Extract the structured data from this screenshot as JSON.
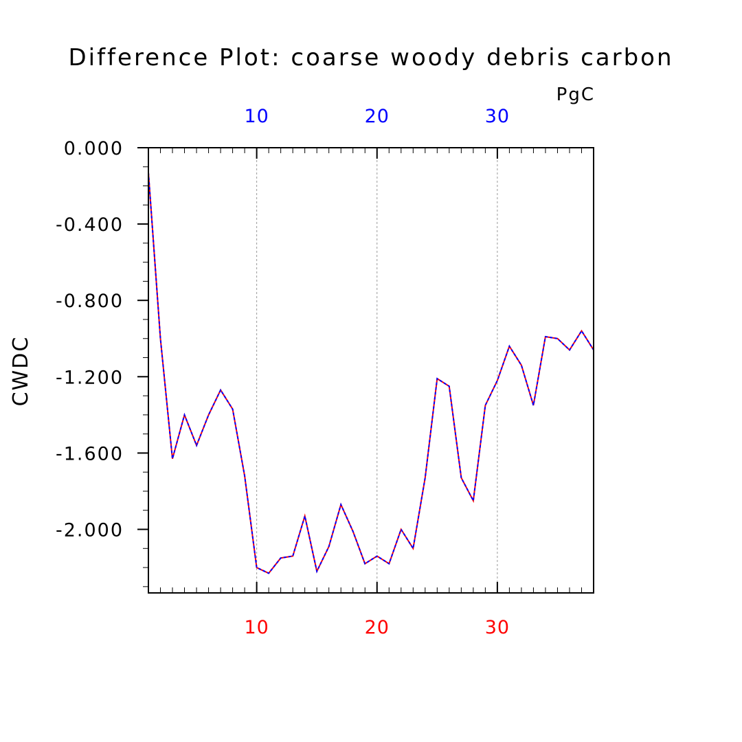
{
  "chart_data": {
    "type": "line",
    "title": "Difference Plot: coarse woody debris carbon",
    "units": "PgC",
    "xlabel": "",
    "ylabel": "CWDC",
    "xlim": [
      1,
      38
    ],
    "ylim": [
      -2.333,
      0
    ],
    "x_ticks": [
      "10",
      "20",
      "30"
    ],
    "y_ticks": [
      "0.000",
      "-0.400",
      "-0.800",
      "-1.200",
      "-1.600",
      "-2.000"
    ],
    "grid": "dashed vertical lines at x = 10, 20, 30",
    "colors": {
      "series_a": "#ff0000",
      "series_b": "#0000ff",
      "bottom_axis": "#ff0000",
      "top_axis": "#0000ff",
      "grid": "#999999"
    },
    "x": [
      1,
      2,
      3,
      4,
      5,
      6,
      7,
      8,
      9,
      10,
      11,
      12,
      13,
      14,
      15,
      16,
      17,
      18,
      19,
      20,
      21,
      22,
      23,
      24,
      25,
      26,
      27,
      28,
      29,
      30,
      31,
      32,
      33,
      34,
      35,
      36,
      37,
      38
    ],
    "series": [
      {
        "values": [
          -0.13,
          -1.0,
          -1.63,
          -1.4,
          -1.56,
          -1.4,
          -1.27,
          -1.37,
          -1.72,
          -2.2,
          -2.23,
          -2.15,
          -2.14,
          -1.93,
          -2.22,
          -2.09,
          -1.87,
          -2.01,
          -2.18,
          -2.14,
          -2.18,
          -2.0,
          -2.1,
          -1.73,
          -1.21,
          -1.25,
          -1.73,
          -1.85,
          -1.35,
          -1.22,
          -1.04,
          -1.14,
          -1.35,
          -0.99,
          -1.0,
          -1.06,
          -0.96,
          -1.06
        ]
      },
      {
        "values": [
          -0.13,
          -1.0,
          -1.63,
          -1.4,
          -1.56,
          -1.4,
          -1.27,
          -1.37,
          -1.72,
          -2.2,
          -2.23,
          -2.15,
          -2.14,
          -1.93,
          -2.22,
          -2.09,
          -1.87,
          -2.01,
          -2.18,
          -2.14,
          -2.18,
          -2.0,
          -2.1,
          -1.73,
          -1.21,
          -1.25,
          -1.73,
          -1.85,
          -1.35,
          -1.22,
          -1.04,
          -1.14,
          -1.35,
          -0.99,
          -1.0,
          -1.06,
          -0.96,
          -1.06
        ]
      }
    ]
  }
}
